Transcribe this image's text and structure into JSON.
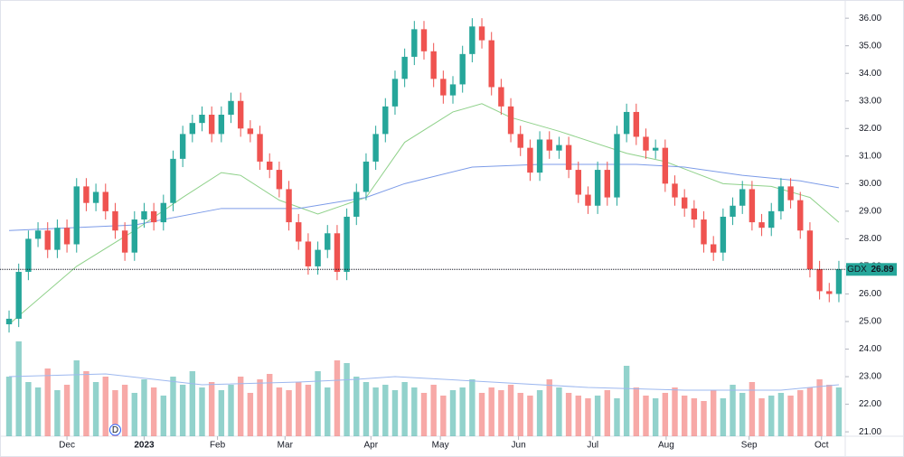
{
  "chart_data": {
    "type": "candlestick",
    "symbol": "GDX",
    "last_price": 26.89,
    "up_color": "#26a69a",
    "down_color": "#ef5350",
    "open": [
      24.9,
      25.1,
      26.8,
      28.0,
      28.3,
      27.6,
      28.4,
      27.8,
      29.9,
      29.3,
      29.7,
      29.0,
      28.3,
      27.5,
      28.7,
      29.0,
      28.6,
      29.3,
      30.9,
      31.8,
      32.2,
      32.5,
      31.8,
      32.5,
      33.0,
      32.0,
      31.8,
      30.8,
      30.5,
      29.8,
      28.6,
      27.9,
      27.0,
      27.6,
      28.2,
      26.8,
      28.8,
      29.7,
      30.8,
      31.8,
      32.8,
      33.8,
      34.6,
      35.6,
      34.8,
      33.8,
      33.2,
      33.6,
      34.7,
      35.7,
      35.2,
      33.5,
      32.8,
      31.8,
      31.3,
      30.4,
      31.6,
      31.2,
      31.4,
      30.5,
      29.6,
      29.2,
      30.5,
      29.5,
      31.8,
      32.6,
      31.7,
      31.2,
      31.3,
      30.0,
      29.5,
      29.1,
      28.7,
      27.8,
      27.5,
      28.8,
      29.2,
      29.8,
      28.6,
      28.4,
      29.0,
      29.9,
      29.4,
      28.3,
      26.9,
      26.1,
      26.0
    ],
    "high": [
      25.4,
      27.1,
      28.3,
      28.6,
      28.6,
      28.7,
      28.7,
      30.2,
      30.2,
      30.0,
      30.0,
      29.3,
      28.6,
      29.0,
      29.3,
      29.3,
      29.6,
      31.2,
      32.1,
      32.5,
      32.8,
      32.8,
      32.8,
      33.3,
      33.3,
      32.3,
      32.1,
      31.1,
      30.8,
      30.1,
      28.9,
      28.2,
      27.9,
      28.5,
      28.5,
      29.1,
      30.0,
      31.1,
      32.1,
      33.1,
      34.1,
      34.9,
      35.9,
      35.9,
      35.1,
      34.1,
      33.9,
      35.0,
      36.0,
      36.0,
      35.5,
      33.8,
      33.1,
      32.1,
      31.6,
      31.9,
      31.9,
      31.7,
      31.7,
      30.8,
      29.9,
      30.8,
      30.8,
      32.1,
      32.9,
      32.9,
      32.0,
      31.6,
      31.6,
      30.3,
      29.8,
      29.4,
      29.0,
      28.1,
      29.1,
      29.5,
      30.1,
      30.1,
      28.9,
      29.3,
      30.2,
      30.2,
      29.7,
      28.6,
      27.2,
      26.4,
      27.2
    ],
    "low": [
      24.6,
      24.8,
      26.5,
      27.7,
      27.3,
      27.3,
      27.5,
      27.5,
      29.0,
      29.0,
      28.7,
      28.0,
      27.2,
      27.2,
      28.4,
      28.3,
      28.3,
      29.0,
      30.6,
      31.5,
      31.9,
      31.5,
      31.5,
      32.2,
      31.7,
      31.5,
      30.5,
      30.2,
      29.5,
      28.3,
      27.6,
      26.7,
      26.7,
      27.3,
      26.5,
      26.5,
      28.5,
      29.4,
      30.5,
      31.5,
      32.5,
      33.5,
      34.3,
      34.5,
      33.5,
      32.9,
      32.9,
      33.3,
      34.4,
      34.9,
      33.2,
      32.5,
      31.5,
      31.0,
      30.1,
      30.1,
      30.9,
      30.9,
      30.2,
      29.3,
      28.9,
      28.9,
      29.2,
      29.2,
      31.5,
      31.4,
      30.9,
      30.9,
      29.7,
      29.2,
      28.8,
      28.4,
      27.5,
      27.2,
      27.2,
      28.5,
      28.9,
      28.3,
      28.1,
      28.1,
      28.7,
      29.1,
      28.0,
      26.6,
      25.8,
      25.7,
      25.7
    ],
    "close": [
      25.1,
      26.8,
      28.0,
      28.3,
      27.6,
      28.4,
      27.8,
      29.9,
      29.3,
      29.7,
      29.0,
      28.3,
      27.5,
      28.7,
      29.0,
      28.6,
      29.3,
      30.9,
      31.8,
      32.2,
      32.5,
      31.8,
      32.5,
      33.0,
      32.0,
      31.8,
      30.8,
      30.5,
      29.8,
      28.6,
      27.9,
      27.0,
      27.6,
      28.2,
      26.8,
      28.8,
      29.7,
      30.8,
      31.8,
      32.8,
      33.8,
      34.6,
      35.6,
      34.8,
      33.8,
      33.2,
      33.6,
      34.7,
      35.7,
      35.2,
      33.5,
      32.8,
      31.8,
      31.3,
      30.4,
      31.6,
      31.2,
      31.4,
      30.5,
      29.6,
      29.2,
      30.5,
      29.5,
      31.8,
      32.6,
      31.7,
      31.2,
      31.3,
      30.0,
      29.5,
      29.1,
      28.7,
      27.8,
      27.5,
      28.8,
      29.2,
      29.8,
      28.6,
      28.4,
      29.0,
      29.9,
      29.4,
      28.3,
      26.9,
      26.1,
      26.0,
      26.9
    ],
    "volume": [
      22,
      35,
      20,
      18,
      25,
      17,
      19,
      28,
      24,
      20,
      22,
      17,
      19,
      16,
      21,
      18,
      15,
      22,
      19,
      24,
      18,
      20,
      17,
      19,
      22,
      16,
      21,
      23,
      18,
      17,
      20,
      19,
      24,
      18,
      28,
      27,
      22,
      20,
      18,
      19,
      17,
      20,
      18,
      16,
      19,
      15,
      17,
      18,
      21,
      16,
      18,
      17,
      19,
      16,
      15,
      17,
      21,
      18,
      16,
      15,
      14,
      15,
      17,
      14,
      26,
      18,
      15,
      14,
      16,
      18,
      15,
      14,
      13,
      17,
      14,
      19,
      16,
      20,
      14,
      15,
      16,
      15,
      17,
      18,
      21,
      19,
      18
    ],
    "volume_ylim": [
      0,
      50
    ],
    "moving_averages": [
      {
        "color": "#8fd18a",
        "x": [
          0,
          7,
          13,
          18,
          22,
          24,
          28,
          32,
          37,
          41,
          46,
          49,
          52,
          57,
          64,
          68,
          74,
          79,
          83,
          86
        ],
        "values": [
          24.9,
          27.0,
          28.3,
          29.5,
          30.4,
          30.3,
          29.4,
          28.9,
          29.5,
          31.5,
          32.6,
          32.9,
          32.4,
          31.9,
          31.1,
          30.8,
          30.0,
          29.9,
          29.5,
          28.6
        ]
      },
      {
        "color": "#7c9be8",
        "x": [
          0,
          13,
          22,
          30,
          37,
          41,
          48,
          55,
          65,
          70,
          76,
          82,
          86
        ],
        "values": [
          28.3,
          28.5,
          29.1,
          29.1,
          29.5,
          30.0,
          30.6,
          30.7,
          30.7,
          30.6,
          30.3,
          30.1,
          29.85
        ]
      },
      {
        "color": "#9db8ef",
        "axis": "volume",
        "x": [
          0,
          10,
          20,
          30,
          36,
          40,
          50,
          60,
          70,
          80,
          86
        ],
        "values": [
          22,
          23,
          19,
          20,
          21,
          22,
          20,
          18,
          17,
          17,
          19
        ]
      }
    ],
    "markers": [
      {
        "label": "D",
        "x": 11
      }
    ],
    "xlim": [
      -0.94,
      86.66
    ],
    "xticks": [
      {
        "value": 6,
        "label": "Dec"
      },
      {
        "value": 14,
        "label": "2023"
      },
      {
        "value": 21.6,
        "label": "Feb"
      },
      {
        "value": 28.6,
        "label": "Mar"
      },
      {
        "value": 37.5,
        "label": "Apr"
      },
      {
        "value": 44.7,
        "label": "May"
      },
      {
        "value": 52.8,
        "label": "Jun"
      },
      {
        "value": 60.5,
        "label": "Jul"
      },
      {
        "value": 68.1,
        "label": "Aug"
      },
      {
        "value": 76.7,
        "label": "Sep"
      },
      {
        "value": 84.2,
        "label": "Oct"
      }
    ],
    "ylim": [
      20.84,
      36.66
    ],
    "yticks": [
      {
        "value": 21,
        "label": "21.00"
      },
      {
        "value": 22,
        "label": "22.00"
      },
      {
        "value": 23,
        "label": "23.00"
      },
      {
        "value": 24,
        "label": "24.00"
      },
      {
        "value": 25,
        "label": "25.00"
      },
      {
        "value": 26,
        "label": "26.00"
      },
      {
        "value": 27,
        "label": "27.00"
      },
      {
        "value": 28,
        "label": "28.00"
      },
      {
        "value": 29,
        "label": "29.00"
      },
      {
        "value": 30,
        "label": "30.00"
      },
      {
        "value": 31,
        "label": "31.00"
      },
      {
        "value": 32,
        "label": "32.00"
      },
      {
        "value": 33,
        "label": "33.00"
      },
      {
        "value": 34,
        "label": "34.00"
      },
      {
        "value": 35,
        "label": "35.00"
      },
      {
        "value": 36,
        "label": "36.00"
      }
    ]
  }
}
